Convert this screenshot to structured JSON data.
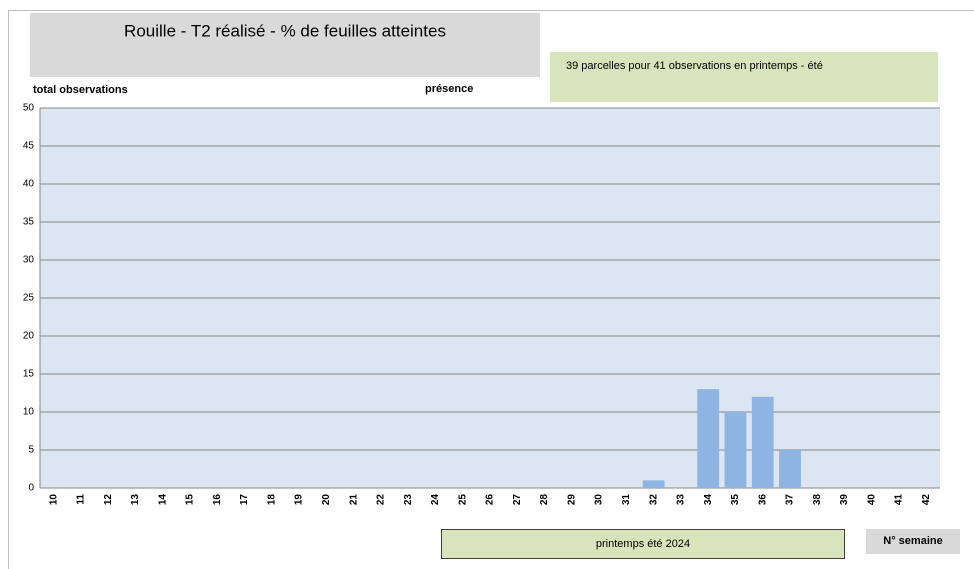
{
  "chart_data": {
    "type": "bar",
    "title": "Rouille - T2 réalisé - % de feuilles atteintes",
    "annotation": "39 parcelles pour 41 observations en printemps - été",
    "y_label": "total observations",
    "series_label": "présence",
    "season_label": "printemps été 2024",
    "x_label": "N° semaine",
    "categories": [
      "10",
      "11",
      "12",
      "13",
      "14",
      "15",
      "16",
      "17",
      "18",
      "19",
      "20",
      "21",
      "22",
      "23",
      "24",
      "25",
      "26",
      "27",
      "28",
      "29",
      "30",
      "31",
      "32",
      "33",
      "34",
      "35",
      "36",
      "37",
      "38",
      "39",
      "40",
      "41",
      "42"
    ],
    "values": [
      0,
      0,
      0,
      0,
      0,
      0,
      0,
      0,
      0,
      0,
      0,
      0,
      0,
      0,
      0,
      0,
      0,
      0,
      0,
      0,
      0,
      0,
      1,
      0,
      13,
      10,
      12,
      5,
      0,
      0,
      0,
      0,
      0
    ],
    "color": "#8db4e2",
    "ylim": [
      0,
      50
    ],
    "yticks": [
      0,
      5,
      10,
      15,
      20,
      25,
      30,
      35,
      40,
      45,
      50
    ],
    "grid": true
  }
}
